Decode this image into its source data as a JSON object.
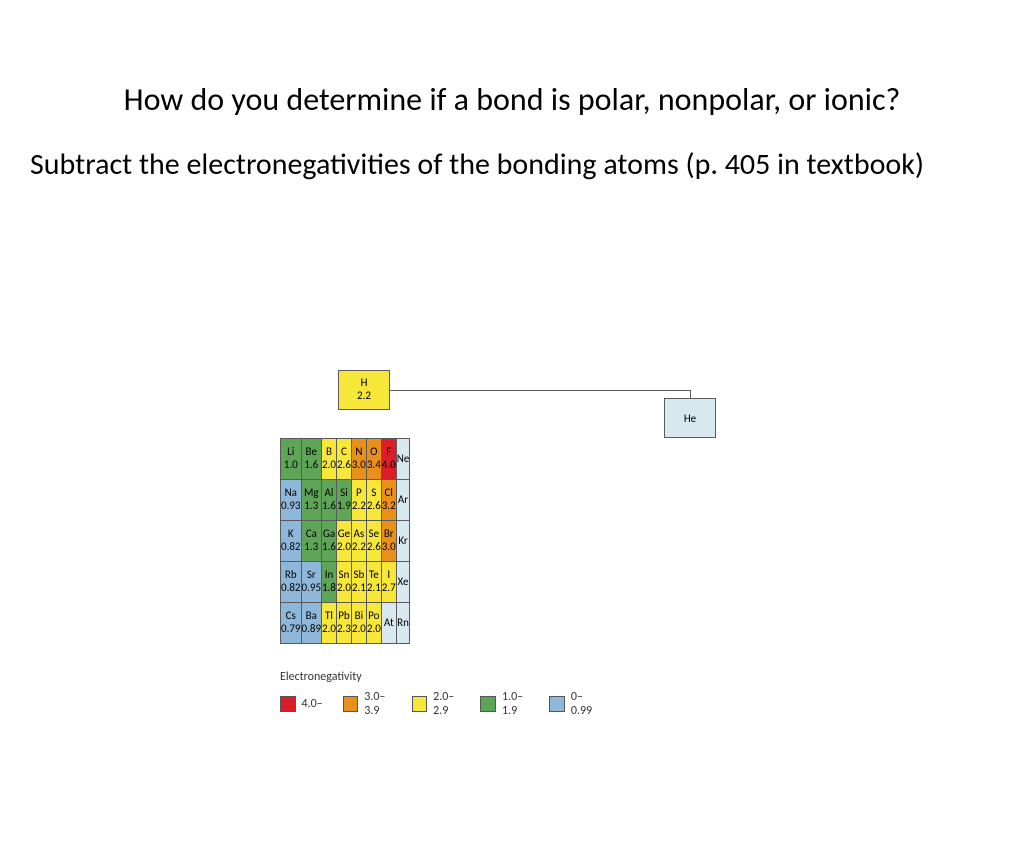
{
  "title": "How do you determine if a bond is polar, nonpolar, or ionic?",
  "subtitle": "Subtract the electronegativities of the bonding atoms (p. 405 in textbook)",
  "colors": {
    "red": "#d9202a",
    "orange": "#e8901a",
    "yellow": "#f6e738",
    "green": "#5fa557",
    "blue": "#8fb7d9",
    "lightblue": "#d7e8ef",
    "border": "#5a5a5a",
    "text": "#1a1a1a"
  },
  "hydrogen": {
    "sym": "H",
    "val": "2.2",
    "colorKey": "yellow"
  },
  "helium": {
    "sym": "He",
    "colorKey": "lightblue"
  },
  "rows": [
    [
      {
        "sym": "Li",
        "val": "1.0",
        "c": "green"
      },
      {
        "sym": "Be",
        "val": "1.6",
        "c": "green"
      },
      {
        "sym": "B",
        "val": "2.0",
        "c": "yellow"
      },
      {
        "sym": "C",
        "val": "2.6",
        "c": "yellow"
      },
      {
        "sym": "N",
        "val": "3.0",
        "c": "orange"
      },
      {
        "sym": "O",
        "val": "3.4",
        "c": "orange"
      },
      {
        "sym": "F",
        "val": "4.0",
        "c": "red"
      },
      {
        "sym": "Ne",
        "val": "",
        "c": "lightblue"
      }
    ],
    [
      {
        "sym": "Na",
        "val": "0.93",
        "c": "blue"
      },
      {
        "sym": "Mg",
        "val": "1.3",
        "c": "green"
      },
      {
        "sym": "Al",
        "val": "1.6",
        "c": "green"
      },
      {
        "sym": "Si",
        "val": "1.9",
        "c": "green"
      },
      {
        "sym": "P",
        "val": "2.2",
        "c": "yellow"
      },
      {
        "sym": "S",
        "val": "2.6",
        "c": "yellow"
      },
      {
        "sym": "Cl",
        "val": "3.2",
        "c": "orange"
      },
      {
        "sym": "Ar",
        "val": "",
        "c": "lightblue"
      }
    ],
    [
      {
        "sym": "K",
        "val": "0.82",
        "c": "blue"
      },
      {
        "sym": "Ca",
        "val": "1.3",
        "c": "green"
      },
      {
        "sym": "Ga",
        "val": "1.6",
        "c": "green"
      },
      {
        "sym": "Ge",
        "val": "2.0",
        "c": "yellow"
      },
      {
        "sym": "As",
        "val": "2.2",
        "c": "yellow"
      },
      {
        "sym": "Se",
        "val": "2.6",
        "c": "yellow"
      },
      {
        "sym": "Br",
        "val": "3.0",
        "c": "orange"
      },
      {
        "sym": "Kr",
        "val": "",
        "c": "lightblue"
      }
    ],
    [
      {
        "sym": "Rb",
        "val": "0.82",
        "c": "blue"
      },
      {
        "sym": "Sr",
        "val": "0.95",
        "c": "blue"
      },
      {
        "sym": "In",
        "val": "1.8",
        "c": "green"
      },
      {
        "sym": "Sn",
        "val": "2.0",
        "c": "yellow"
      },
      {
        "sym": "Sb",
        "val": "2.1",
        "c": "yellow"
      },
      {
        "sym": "Te",
        "val": "2.1",
        "c": "yellow"
      },
      {
        "sym": "I",
        "val": "2.7",
        "c": "yellow"
      },
      {
        "sym": "Xe",
        "val": "",
        "c": "lightblue"
      }
    ],
    [
      {
        "sym": "Cs",
        "val": "0.79",
        "c": "blue"
      },
      {
        "sym": "Ba",
        "val": "0.89",
        "c": "blue"
      },
      {
        "sym": "Tl",
        "val": "2.0",
        "c": "yellow"
      },
      {
        "sym": "Pb",
        "val": "2.3",
        "c": "yellow"
      },
      {
        "sym": "Bi",
        "val": "2.0",
        "c": "yellow"
      },
      {
        "sym": "Po",
        "val": "2.0",
        "c": "yellow"
      },
      {
        "sym": "At",
        "val": "",
        "c": "lightblue"
      },
      {
        "sym": "Rn",
        "val": "",
        "c": "lightblue"
      }
    ]
  ],
  "legend": {
    "title": "Electronegativity",
    "items": [
      {
        "c": "red",
        "label": "4.0–"
      },
      {
        "c": "orange",
        "label": "3.0–3.9"
      },
      {
        "c": "yellow",
        "label": "2.0–2.9"
      },
      {
        "c": "green",
        "label": "1.0–1.9"
      },
      {
        "c": "blue",
        "label": "0–0.99"
      }
    ]
  }
}
